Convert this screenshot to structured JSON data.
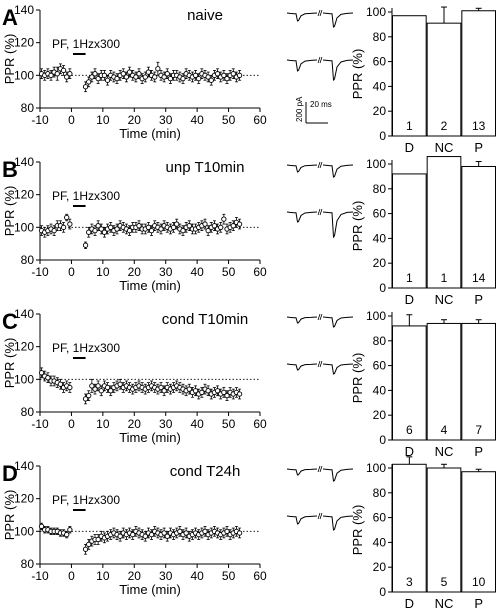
{
  "figure": {
    "scale_bar": {
      "current": "200 pA",
      "time": "20 ms"
    }
  },
  "chart_data": [
    {
      "letter": "A",
      "title": "naive",
      "stim_label": "PF, 1Hzx300",
      "timecourse": {
        "type": "scatter",
        "xlabel": "Time (min)",
        "ylabel": "PPR (%)",
        "xlim": [
          -10,
          60
        ],
        "ylim": [
          80,
          140
        ],
        "xticks": [
          -10,
          0,
          10,
          20,
          30,
          40,
          50,
          60
        ],
        "yticks": [
          80,
          100,
          120,
          140
        ],
        "x": [
          -9.5,
          -8.5,
          -7.5,
          -6.5,
          -5.5,
          -4.5,
          -3.5,
          -2.5,
          -1.5,
          -0.5,
          4.5,
          5.5,
          6.5,
          7.5,
          8.5,
          9.5,
          10.5,
          11.5,
          12.5,
          13.5,
          14.5,
          15.5,
          16.5,
          17.5,
          18.5,
          19.5,
          20.5,
          21.5,
          22.5,
          23.5,
          24.5,
          25.5,
          26.5,
          27.5,
          28.5,
          29.5,
          30.5,
          31.5,
          32.5,
          33.5,
          34.5,
          35.5,
          36.5,
          37.5,
          38.5,
          39.5,
          40.5,
          41.5,
          42.5,
          43.5,
          44.5,
          45.5,
          46.5,
          47.5,
          48.5,
          49.5,
          50.5,
          51.5,
          52.5,
          53.5
        ],
        "y": [
          101,
          100,
          101,
          100,
          102,
          101,
          104,
          103,
          99,
          101,
          93,
          96,
          99,
          101,
          98,
          100,
          100,
          97,
          100,
          99,
          98,
          100,
          101,
          99,
          102,
          100,
          99,
          101,
          98,
          99,
          102,
          100,
          99,
          104,
          100,
          99,
          101,
          98,
          100,
          100,
          99,
          98,
          101,
          100,
          99,
          100,
          98,
          101,
          100,
          99,
          97,
          100,
          101,
          99,
          100,
          98,
          100,
          101,
          99,
          100
        ],
        "err": [
          3,
          3,
          3,
          3,
          3,
          4,
          3,
          3,
          3,
          3,
          3,
          3,
          3,
          3,
          3,
          3,
          3,
          3,
          3,
          3,
          3,
          3,
          3,
          3,
          3,
          3,
          3,
          3,
          3,
          3,
          3,
          3,
          3,
          4,
          3,
          3,
          3,
          3,
          3,
          3,
          3,
          3,
          3,
          3,
          3,
          3,
          3,
          3,
          3,
          3,
          3,
          3,
          3,
          3,
          3,
          3,
          3,
          3,
          3,
          3
        ]
      },
      "bars": {
        "type": "bar",
        "ylabel": "PPR (%)",
        "ylim": [
          0,
          100
        ],
        "yticks": [
          0,
          20,
          40,
          60,
          80,
          100
        ],
        "categories": [
          "D",
          "NC",
          "P"
        ],
        "values": [
          97,
          91,
          101
        ],
        "err": [
          0,
          13,
          2
        ],
        "n": [
          "1",
          "2",
          "13"
        ]
      }
    },
    {
      "letter": "B",
      "title": "unp T10min",
      "stim_label": "PF, 1Hzx300",
      "timecourse": {
        "type": "scatter",
        "xlabel": "Time (min)",
        "ylabel": "PPR (%)",
        "xlim": [
          -10,
          60
        ],
        "ylim": [
          80,
          140
        ],
        "xticks": [
          -10,
          0,
          10,
          20,
          30,
          40,
          50,
          60
        ],
        "yticks": [
          80,
          100,
          120,
          140
        ],
        "x": [
          -9.5,
          -8.5,
          -7.5,
          -6.5,
          -5.5,
          -4.5,
          -3.5,
          -2.5,
          -1.5,
          -0.5,
          4.5,
          5.5,
          6.5,
          7.5,
          8.5,
          9.5,
          10.5,
          11.5,
          12.5,
          13.5,
          14.5,
          15.5,
          16.5,
          17.5,
          18.5,
          19.5,
          20.5,
          21.5,
          22.5,
          23.5,
          24.5,
          25.5,
          26.5,
          27.5,
          28.5,
          29.5,
          30.5,
          31.5,
          32.5,
          33.5,
          34.5,
          35.5,
          36.5,
          37.5,
          38.5,
          39.5,
          40.5,
          41.5,
          42.5,
          43.5,
          44.5,
          45.5,
          46.5,
          47.5,
          48.5,
          49.5,
          50.5,
          51.5,
          52.5,
          53.5
        ],
        "y": [
          98,
          97,
          98,
          99,
          98,
          101,
          101,
          100,
          106,
          102,
          89,
          97,
          99,
          98,
          101,
          99,
          97,
          99,
          100,
          98,
          99,
          101,
          100,
          99,
          98,
          100,
          100,
          101,
          99,
          99,
          100,
          98,
          101,
          100,
          99,
          101,
          100,
          99,
          100,
          102,
          99,
          98,
          100,
          101,
          99,
          99,
          100,
          101,
          102,
          98,
          100,
          101,
          99,
          100,
          105,
          99,
          100,
          101,
          103,
          102
        ],
        "err": [
          3,
          3,
          3,
          3,
          3,
          3,
          3,
          3,
          2,
          3,
          2,
          3,
          3,
          3,
          3,
          3,
          3,
          3,
          3,
          3,
          3,
          3,
          3,
          3,
          3,
          3,
          3,
          3,
          3,
          3,
          3,
          3,
          3,
          3,
          3,
          3,
          3,
          3,
          3,
          3,
          3,
          3,
          3,
          3,
          3,
          3,
          3,
          3,
          3,
          3,
          3,
          3,
          3,
          3,
          3,
          3,
          3,
          3,
          3,
          3
        ]
      },
      "bars": {
        "type": "bar",
        "ylabel": "PPR (%)",
        "ylim": [
          0,
          100
        ],
        "yticks": [
          0,
          20,
          40,
          60,
          80,
          100
        ],
        "categories": [
          "D",
          "NC",
          "P"
        ],
        "values": [
          92,
          106,
          98
        ],
        "err": [
          0,
          0,
          4
        ],
        "n": [
          "1",
          "1",
          "14"
        ]
      }
    },
    {
      "letter": "C",
      "title": "cond T10min",
      "stim_label": "PF, 1Hzx300",
      "timecourse": {
        "type": "scatter",
        "xlabel": "Time (min)",
        "ylabel": "PPR (%)",
        "xlim": [
          -10,
          60
        ],
        "ylim": [
          80,
          140
        ],
        "xticks": [
          -10,
          0,
          10,
          20,
          30,
          40,
          50,
          60
        ],
        "yticks": [
          80,
          100,
          120,
          140
        ],
        "x": [
          -9.5,
          -8.5,
          -7.5,
          -6.5,
          -5.5,
          -4.5,
          -3.5,
          -2.5,
          -1.5,
          -0.5,
          4.5,
          5.5,
          6.5,
          7.5,
          8.5,
          9.5,
          10.5,
          11.5,
          12.5,
          13.5,
          14.5,
          15.5,
          16.5,
          17.5,
          18.5,
          19.5,
          20.5,
          21.5,
          22.5,
          23.5,
          24.5,
          25.5,
          26.5,
          27.5,
          28.5,
          29.5,
          30.5,
          31.5,
          32.5,
          33.5,
          34.5,
          35.5,
          36.5,
          37.5,
          38.5,
          39.5,
          40.5,
          41.5,
          42.5,
          43.5,
          44.5,
          45.5,
          46.5,
          47.5,
          48.5,
          49.5,
          50.5,
          51.5,
          52.5,
          53.5
        ],
        "y": [
          104,
          102,
          101,
          99,
          99,
          98,
          97,
          95,
          96,
          95,
          88,
          90,
          96,
          94,
          96,
          93,
          96,
          95,
          93,
          95,
          96,
          97,
          95,
          96,
          95,
          94,
          95,
          96,
          95,
          94,
          95,
          96,
          95,
          94,
          95,
          93,
          95,
          94,
          95,
          96,
          95,
          94,
          93,
          94,
          92,
          93,
          91,
          92,
          94,
          93,
          91,
          92,
          93,
          91,
          92,
          90,
          92,
          91,
          92,
          91
        ],
        "err": [
          3,
          3,
          3,
          3,
          3,
          3,
          3,
          3,
          3,
          3,
          3,
          3,
          4,
          3,
          3,
          3,
          3,
          3,
          3,
          3,
          3,
          3,
          3,
          3,
          3,
          3,
          3,
          3,
          3,
          3,
          3,
          3,
          3,
          3,
          3,
          3,
          3,
          3,
          3,
          3,
          3,
          3,
          3,
          3,
          3,
          3,
          3,
          3,
          3,
          3,
          3,
          3,
          3,
          3,
          3,
          3,
          3,
          3,
          3,
          3
        ]
      },
      "bars": {
        "type": "bar",
        "ylabel": "PPR (%)",
        "ylim": [
          0,
          100
        ],
        "yticks": [
          0,
          20,
          40,
          60,
          80,
          100
        ],
        "categories": [
          "D",
          "NC",
          "P"
        ],
        "values": [
          92,
          94,
          94
        ],
        "err": [
          9,
          3,
          3
        ],
        "n": [
          "6",
          "4",
          "7"
        ]
      }
    },
    {
      "letter": "D",
      "title": "cond T24h",
      "stim_label": "PF, 1Hzx300",
      "timecourse": {
        "type": "scatter",
        "xlabel": "Time (min)",
        "ylabel": "PPR (%)",
        "xlim": [
          -10,
          60
        ],
        "ylim": [
          80,
          140
        ],
        "xticks": [
          -10,
          0,
          10,
          20,
          30,
          40,
          50,
          60
        ],
        "yticks": [
          80,
          100,
          120,
          140
        ],
        "x": [
          -9.5,
          -8.5,
          -7.5,
          -6.5,
          -5.5,
          -4.5,
          -3.5,
          -2.5,
          -1.5,
          -0.5,
          4.5,
          5.5,
          6.5,
          7.5,
          8.5,
          9.5,
          10.5,
          11.5,
          12.5,
          13.5,
          14.5,
          15.5,
          16.5,
          17.5,
          18.5,
          19.5,
          20.5,
          21.5,
          22.5,
          23.5,
          24.5,
          25.5,
          26.5,
          27.5,
          28.5,
          29.5,
          30.5,
          31.5,
          32.5,
          33.5,
          34.5,
          35.5,
          36.5,
          37.5,
          38.5,
          39.5,
          40.5,
          41.5,
          42.5,
          43.5,
          44.5,
          45.5,
          46.5,
          47.5,
          48.5,
          49.5,
          50.5,
          51.5,
          52.5,
          53.5
        ],
        "y": [
          103,
          101,
          101,
          100,
          100,
          100,
          99,
          99,
          98,
          101,
          89,
          92,
          94,
          95,
          95,
          97,
          96,
          97,
          98,
          99,
          98,
          97,
          99,
          98,
          99,
          98,
          100,
          99,
          98,
          97,
          99,
          98,
          100,
          99,
          98,
          99,
          97,
          99,
          98,
          99,
          100,
          98,
          99,
          97,
          98,
          99,
          98,
          99,
          100,
          98,
          99,
          100,
          99,
          98,
          99,
          100,
          98,
          99,
          100,
          99
        ],
        "err": [
          2,
          2,
          2,
          2,
          2,
          2,
          2,
          2,
          2,
          2,
          3,
          3,
          3,
          3,
          3,
          3,
          3,
          3,
          3,
          3,
          3,
          3,
          3,
          3,
          3,
          3,
          3,
          3,
          3,
          3,
          3,
          3,
          3,
          3,
          3,
          3,
          3,
          3,
          3,
          3,
          3,
          3,
          3,
          3,
          3,
          3,
          3,
          3,
          3,
          3,
          3,
          3,
          3,
          3,
          3,
          3,
          3,
          3,
          3,
          3
        ]
      },
      "bars": {
        "type": "bar",
        "ylabel": "PPR (%)",
        "ylim": [
          0,
          100
        ],
        "yticks": [
          0,
          20,
          40,
          60,
          80,
          100
        ],
        "categories": [
          "D",
          "NC",
          "P"
        ],
        "values": [
          103,
          100,
          97
        ],
        "err": [
          6,
          3,
          2
        ],
        "n": [
          "3",
          "5",
          "10"
        ]
      }
    }
  ]
}
